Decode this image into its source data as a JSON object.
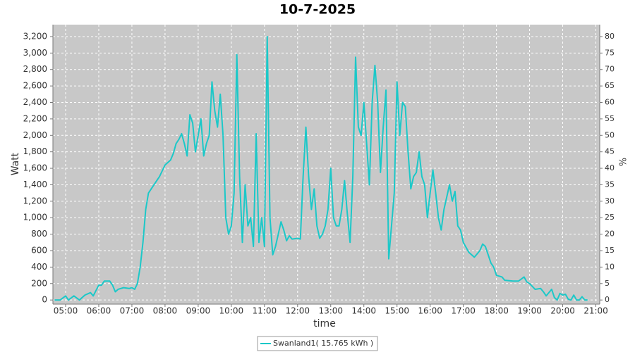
{
  "chart_data": {
    "type": "line",
    "title": "10-7-2025",
    "x_label": "time",
    "y_label": "Watt",
    "y2_label": "%",
    "legend": "bottom",
    "grid": true,
    "xlim": [
      "04:37",
      "21:07"
    ],
    "xticks": [
      "05:00",
      "06:00",
      "07:00",
      "08:00",
      "09:00",
      "10:00",
      "11:00",
      "12:00",
      "13:00",
      "14:00",
      "15:00",
      "16:00",
      "17:00",
      "18:00",
      "19:00",
      "20:00",
      "21:00"
    ],
    "ylim": [
      -50,
      3345
    ],
    "yticks": [
      0,
      {
        "value": 200,
        "label": "200"
      },
      {
        "value": 400,
        "label": "400"
      },
      {
        "value": 600,
        "label": "600"
      },
      {
        "value": 800,
        "label": "800"
      },
      {
        "value": 1000,
        "label": "1,000"
      },
      {
        "value": 1200,
        "label": "1,200"
      },
      {
        "value": 1400,
        "label": "1,400"
      },
      {
        "value": 1600,
        "label": "1,600"
      },
      {
        "value": 1800,
        "label": "1,800"
      },
      {
        "value": 2000,
        "label": "2,000"
      },
      {
        "value": 2200,
        "label": "2,200"
      },
      {
        "value": 2400,
        "label": "2,400"
      },
      {
        "value": 2600,
        "label": "2,600"
      },
      {
        "value": 2800,
        "label": "2,800"
      },
      {
        "value": 3000,
        "label": "3,000"
      },
      {
        "value": 3200,
        "label": "3,200"
      }
    ],
    "y2lim": [
      -1.25,
      83.625
    ],
    "y2ticks": [
      0,
      5,
      10,
      15,
      20,
      25,
      30,
      35,
      40,
      45,
      50,
      55,
      60,
      65,
      70,
      75,
      80
    ],
    "x": [
      "04:40",
      "04:50",
      "05:00",
      "05:05",
      "05:15",
      "05:25",
      "05:35",
      "05:45",
      "05:50",
      "06:00",
      "06:05",
      "06:10",
      "06:20",
      "06:25",
      "06:30",
      "06:35",
      "06:45",
      "06:55",
      "07:00",
      "07:05",
      "07:10",
      "07:15",
      "07:20",
      "07:25",
      "07:30",
      "07:40",
      "07:50",
      "08:00",
      "08:10",
      "08:15",
      "08:20",
      "08:25",
      "08:30",
      "08:35",
      "08:40",
      "08:45",
      "08:50",
      "08:55",
      "09:00",
      "09:05",
      "09:10",
      "09:15",
      "09:20",
      "09:25",
      "09:30",
      "09:35",
      "09:40",
      "09:45",
      "09:50",
      "09:55",
      "10:00",
      "10:05",
      "10:10",
      "10:15",
      "10:20",
      "10:25",
      "10:30",
      "10:35",
      "10:40",
      "10:45",
      "10:50",
      "10:55",
      "11:00",
      "11:05",
      "11:10",
      "11:15",
      "11:20",
      "11:25",
      "11:30",
      "11:35",
      "11:40",
      "11:45",
      "11:50",
      "12:00",
      "12:05",
      "12:10",
      "12:15",
      "12:20",
      "12:25",
      "12:30",
      "12:35",
      "12:40",
      "12:45",
      "12:50",
      "12:55",
      "13:00",
      "13:05",
      "13:10",
      "13:15",
      "13:20",
      "13:25",
      "13:30",
      "13:35",
      "13:40",
      "13:45",
      "13:50",
      "13:55",
      "14:00",
      "14:05",
      "14:10",
      "14:15",
      "14:20",
      "14:25",
      "14:30",
      "14:35",
      "14:40",
      "14:45",
      "14:50",
      "14:55",
      "15:00",
      "15:05",
      "15:10",
      "15:15",
      "15:20",
      "15:25",
      "15:30",
      "15:35",
      "15:40",
      "15:45",
      "15:50",
      "15:55",
      "16:00",
      "16:05",
      "16:10",
      "16:15",
      "16:20",
      "16:25",
      "16:30",
      "16:35",
      "16:40",
      "16:45",
      "16:50",
      "16:55",
      "17:00",
      "17:10",
      "17:20",
      "17:30",
      "17:35",
      "17:40",
      "17:45",
      "17:50",
      "17:55",
      "18:00",
      "18:10",
      "18:15",
      "18:30",
      "18:40",
      "18:50",
      "18:55",
      "19:00",
      "19:10",
      "19:20",
      "19:25",
      "19:30",
      "19:35",
      "19:40",
      "19:45",
      "19:50",
      "19:55",
      "20:00",
      "20:05",
      "20:10",
      "20:15",
      "20:20",
      "20:25",
      "20:30",
      "20:35",
      "20:40",
      "20:45"
    ],
    "series": [
      {
        "name": "Swanland1( 15.765 kWh )",
        "color": "#1cc8c8",
        "values": [
          0,
          0,
          50,
          0,
          50,
          0,
          60,
          90,
          50,
          180,
          180,
          230,
          230,
          180,
          100,
          130,
          150,
          140,
          150,
          130,
          200,
          400,
          700,
          1100,
          1300,
          1400,
          1500,
          1640,
          1700,
          1780,
          1900,
          1950,
          2020,
          1900,
          1750,
          2250,
          2150,
          1800,
          2000,
          2200,
          1750,
          1900,
          2000,
          2650,
          2300,
          2100,
          2500,
          2000,
          1000,
          800,
          900,
          1300,
          2980,
          1500,
          700,
          1400,
          900,
          1000,
          650,
          2020,
          700,
          1000,
          650,
          3200,
          1000,
          550,
          650,
          800,
          950,
          850,
          720,
          780,
          740,
          750,
          740,
          1500,
          2100,
          1500,
          1100,
          1350,
          900,
          750,
          800,
          900,
          1100,
          1600,
          1000,
          900,
          900,
          1100,
          1450,
          1050,
          700,
          1500,
          2950,
          2100,
          2000,
          2400,
          1900,
          1400,
          2400,
          2850,
          2400,
          1550,
          2100,
          2550,
          500,
          900,
          1300,
          2650,
          2000,
          2400,
          2350,
          1800,
          1350,
          1500,
          1550,
          1800,
          1500,
          1400,
          1000,
          1300,
          1580,
          1300,
          1000,
          850,
          1100,
          1250,
          1400,
          1200,
          1320,
          900,
          850,
          700,
          580,
          520,
          600,
          680,
          650,
          550,
          450,
          400,
          300,
          280,
          240,
          230,
          230,
          280,
          220,
          200,
          130,
          140,
          100,
          50,
          90,
          130,
          30,
          0,
          80,
          60,
          70,
          10,
          0,
          60,
          0,
          0,
          40,
          0,
          0
        ]
      }
    ]
  }
}
